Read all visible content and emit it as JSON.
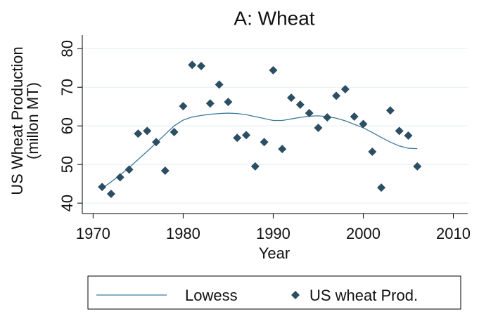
{
  "chart_data": {
    "type": "scatter",
    "title": "A: Wheat",
    "y_label": [
      "US Wheat Production",
      "(millon MT)"
    ],
    "x_label": "Year",
    "x": [
      1971,
      1972,
      1973,
      1974,
      1975,
      1976,
      1977,
      1978,
      1979,
      1980,
      1981,
      1982,
      1983,
      1984,
      1985,
      1986,
      1987,
      1988,
      1989,
      1990,
      1991,
      1992,
      1993,
      1994,
      1995,
      1996,
      1997,
      1998,
      1999,
      2000,
      2001,
      2002,
      2003,
      2004,
      2005,
      2006
    ],
    "series": [
      {
        "name": "Lowess",
        "type": "line",
        "color": "#3d7a99",
        "values": [
          43.8,
          45.5,
          47.3,
          49.2,
          51.3,
          53.4,
          55.6,
          57.8,
          60.0,
          61.5,
          62.3,
          62.7,
          63.0,
          63.2,
          63.3,
          63.2,
          62.9,
          62.4,
          61.9,
          61.4,
          61.4,
          61.8,
          62.2,
          62.5,
          62.6,
          62.4,
          62.0,
          61.3,
          60.4,
          59.5,
          58.3,
          57.0,
          55.8,
          54.8,
          54.2,
          54.1
        ]
      },
      {
        "name": "US wheat Prod.",
        "type": "scatter",
        "color": "#2c4e63",
        "values": [
          44.2,
          42.4,
          46.7,
          48.7,
          58.0,
          58.7,
          55.8,
          48.4,
          58.4,
          65.1,
          75.8,
          75.5,
          65.8,
          70.7,
          66.2,
          56.9,
          57.6,
          49.5,
          55.8,
          74.4,
          54.0,
          67.3,
          65.5,
          63.3,
          59.5,
          62.2,
          67.8,
          69.5,
          62.4,
          60.5,
          53.3,
          44.0,
          64.0,
          58.7,
          57.5,
          49.5
        ]
      }
    ],
    "xlim": [
      1968.8,
      2011.6
    ],
    "xticks": [
      1970,
      1980,
      1990,
      2000,
      2010
    ],
    "ylim": [
      37.3,
      83.5
    ],
    "yticks": [
      40,
      50,
      60,
      70,
      80
    ],
    "grid": true,
    "legend": "bottom"
  }
}
